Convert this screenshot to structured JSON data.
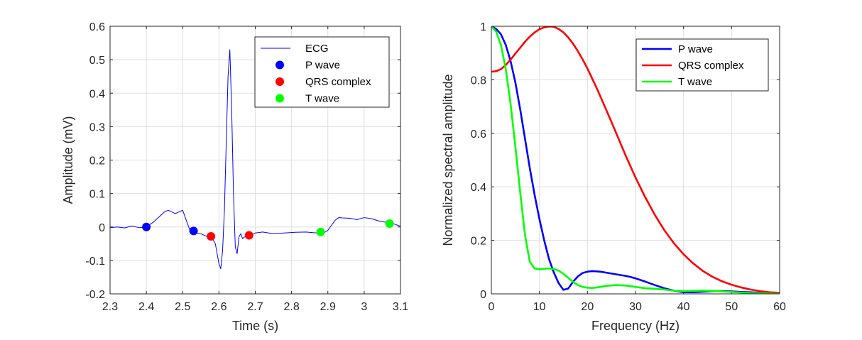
{
  "chart_data": [
    {
      "type": "line",
      "xlabel": "Time (s)",
      "ylabel": "Amplitude (mV)",
      "xlim": [
        2.3,
        3.1
      ],
      "ylim": [
        -0.2,
        0.6
      ],
      "xticks": [
        "2.3",
        "2.4",
        "2.5",
        "2.6",
        "2.7",
        "2.8",
        "2.9",
        "3",
        "3.1"
      ],
      "yticks": [
        "-0.2",
        "-0.1",
        "0",
        "0.1",
        "0.2",
        "0.3",
        "0.4",
        "0.5",
        "0.6"
      ],
      "grid": true,
      "legend_position": "top-right",
      "series": [
        {
          "name": "ECG",
          "kind": "line",
          "color": "#0000ff",
          "x": [
            2.3,
            2.32,
            2.34,
            2.36,
            2.38,
            2.4,
            2.42,
            2.43,
            2.44,
            2.45,
            2.46,
            2.47,
            2.48,
            2.49,
            2.5,
            2.51,
            2.52,
            2.53,
            2.54,
            2.55,
            2.56,
            2.57,
            2.58,
            2.59,
            2.595,
            2.6,
            2.605,
            2.61,
            2.615,
            2.62,
            2.625,
            2.63,
            2.635,
            2.64,
            2.645,
            2.65,
            2.655,
            2.66,
            2.665,
            2.67,
            2.68,
            2.7,
            2.72,
            2.75,
            2.78,
            2.81,
            2.84,
            2.87,
            2.88,
            2.89,
            2.9,
            2.91,
            2.92,
            2.93,
            2.94,
            2.96,
            2.98,
            3.0,
            3.02,
            3.04,
            3.06,
            3.08,
            3.1
          ],
          "y": [
            -0.002,
            0.0,
            -0.003,
            0.003,
            -0.002,
            0.0,
            0.015,
            0.025,
            0.035,
            0.045,
            0.05,
            0.045,
            0.04,
            0.045,
            0.05,
            0.02,
            -0.01,
            -0.013,
            -0.018,
            -0.02,
            -0.025,
            -0.03,
            -0.03,
            -0.05,
            -0.08,
            -0.11,
            -0.125,
            -0.07,
            0.05,
            0.25,
            0.45,
            0.53,
            0.35,
            0.1,
            -0.06,
            -0.08,
            -0.03,
            -0.02,
            -0.035,
            -0.03,
            -0.028,
            -0.018,
            -0.015,
            -0.02,
            -0.018,
            -0.016,
            -0.015,
            -0.018,
            -0.016,
            -0.017,
            -0.01,
            0.005,
            0.02,
            0.028,
            0.027,
            0.026,
            0.022,
            0.028,
            0.025,
            0.018,
            0.014,
            0.01,
            0.002
          ]
        },
        {
          "name": "P wave",
          "kind": "points",
          "color": "#0000ff",
          "x": [
            2.4,
            2.53
          ],
          "y": [
            0.0,
            -0.012
          ]
        },
        {
          "name": "QRS complex",
          "kind": "points",
          "color": "#ff0000",
          "x": [
            2.578,
            2.683
          ],
          "y": [
            -0.028,
            -0.025
          ]
        },
        {
          "name": "T wave",
          "kind": "points",
          "color": "#00ff00",
          "x": [
            2.88,
            3.07
          ],
          "y": [
            -0.015,
            0.01
          ]
        }
      ]
    },
    {
      "type": "line",
      "xlabel": "Frequency (Hz)",
      "ylabel": "Normalized spectral amplitude",
      "xlim": [
        0,
        60
      ],
      "ylim": [
        0,
        1
      ],
      "xticks": [
        "0",
        "10",
        "20",
        "30",
        "40",
        "50",
        "60"
      ],
      "yticks": [
        "0",
        "0.2",
        "0.4",
        "0.6",
        "0.8",
        "1"
      ],
      "grid": true,
      "legend_position": "top-right",
      "series": [
        {
          "name": "P wave",
          "kind": "line",
          "color": "#0000ff",
          "x": [
            0,
            1,
            2,
            3,
            4,
            5,
            6,
            7,
            8,
            9,
            10,
            11,
            12,
            13,
            14,
            15,
            16,
            17,
            18,
            19,
            20,
            21,
            22,
            23,
            24,
            25,
            26,
            27,
            28,
            29,
            30,
            32,
            34,
            36,
            38,
            40,
            42,
            44,
            46,
            48,
            50,
            52,
            54,
            56,
            58,
            60
          ],
          "y": [
            1.0,
            0.99,
            0.97,
            0.93,
            0.87,
            0.79,
            0.69,
            0.58,
            0.47,
            0.37,
            0.28,
            0.2,
            0.13,
            0.08,
            0.04,
            0.015,
            0.02,
            0.045,
            0.065,
            0.078,
            0.083,
            0.085,
            0.084,
            0.082,
            0.079,
            0.076,
            0.073,
            0.07,
            0.067,
            0.063,
            0.058,
            0.046,
            0.033,
            0.021,
            0.012,
            0.006,
            0.006,
            0.008,
            0.01,
            0.01,
            0.009,
            0.007,
            0.006,
            0.004,
            0.002,
            0.001
          ]
        },
        {
          "name": "QRS complex",
          "kind": "line",
          "color": "#ff0000",
          "x": [
            0,
            1,
            2,
            3,
            4,
            5,
            6,
            7,
            8,
            9,
            10,
            11,
            12,
            13,
            14,
            15,
            16,
            17,
            18,
            19,
            20,
            22,
            24,
            26,
            28,
            30,
            32,
            34,
            36,
            38,
            40,
            42,
            44,
            46,
            48,
            50,
            52,
            54,
            56,
            58,
            60
          ],
          "y": [
            0.83,
            0.832,
            0.84,
            0.855,
            0.875,
            0.898,
            0.92,
            0.942,
            0.961,
            0.977,
            0.989,
            0.996,
            0.999,
            0.998,
            0.99,
            0.977,
            0.958,
            0.935,
            0.907,
            0.876,
            0.842,
            0.766,
            0.684,
            0.6,
            0.515,
            0.435,
            0.362,
            0.296,
            0.238,
            0.189,
            0.148,
            0.114,
            0.086,
            0.064,
            0.047,
            0.034,
            0.024,
            0.016,
            0.01,
            0.006,
            0.004
          ]
        },
        {
          "name": "T wave",
          "kind": "line",
          "color": "#00ff00",
          "x": [
            0,
            1,
            2,
            3,
            4,
            5,
            6,
            7,
            8,
            9,
            10,
            11,
            12,
            13,
            14,
            15,
            16,
            17,
            18,
            19,
            20,
            21,
            22,
            24,
            26,
            28,
            30,
            32,
            34,
            36,
            38,
            40,
            42,
            44,
            46,
            48,
            50,
            52,
            54,
            56,
            58,
            60
          ],
          "y": [
            1.0,
            0.98,
            0.93,
            0.84,
            0.71,
            0.55,
            0.38,
            0.22,
            0.12,
            0.095,
            0.092,
            0.094,
            0.095,
            0.093,
            0.087,
            0.075,
            0.06,
            0.045,
            0.033,
            0.026,
            0.023,
            0.022,
            0.024,
            0.03,
            0.033,
            0.031,
            0.026,
            0.021,
            0.019,
            0.016,
            0.012,
            0.01,
            0.011,
            0.012,
            0.011,
            0.009,
            0.007,
            0.005,
            0.003,
            0.002,
            0.001,
            0.0
          ]
        }
      ]
    }
  ]
}
